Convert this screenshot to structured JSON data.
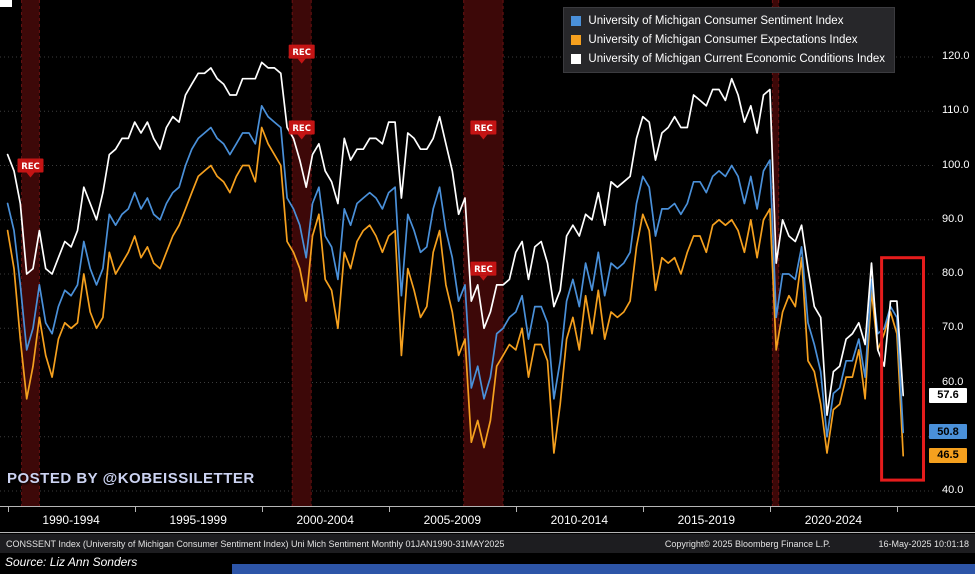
{
  "watermark": "POSTED BY @KOBEISSILETTER",
  "legend": {
    "items": [
      {
        "label": "University of Michigan Consumer Sentiment Index",
        "color": "#4a90d9"
      },
      {
        "label": "University of Michigan Consumer Expectations Index",
        "color": "#f5a01e"
      },
      {
        "label": "University of Michigan Current Economic Conditions Index",
        "color": "#ffffff"
      }
    ]
  },
  "value_badges": [
    {
      "value": "57.6",
      "color": "#ffffff"
    },
    {
      "value": "50.8",
      "color": "#4a90d9"
    },
    {
      "value": "46.5",
      "color": "#f5a01e"
    }
  ],
  "footer": {
    "left": "CONSSENT Index (University of Michigan Consumer Sentiment Index) Uni Mich Sentiment  Monthly 01JAN1990-31MAY2025",
    "copyright": "Copyright© 2025 Bloomberg Finance L.P.",
    "datetime": "16-May-2025 10:01:18"
  },
  "source": "Source: Liz Ann Sonders",
  "chart_data": {
    "type": "line",
    "period": "Monthly 01JAN1990-31MAY2025",
    "rec_label": "REC",
    "x_start": 1990.0,
    "x_step": 0.25,
    "x_domain": [
      1989.7,
      2026.5
    ],
    "y_domain": [
      40,
      120
    ],
    "y_ticks": [
      40,
      50,
      60,
      70,
      80,
      90,
      100,
      110,
      120
    ],
    "y_tick_labels": [
      "40.0",
      "50.0",
      "60.0",
      "70.0",
      "80.0",
      "90.0",
      "100.0",
      "110.0",
      "120.0"
    ],
    "x_tick_years": [
      1990,
      1995,
      2000,
      2005,
      2010,
      2015,
      2020,
      2025
    ],
    "x_labels": [
      {
        "label": "1990-1994",
        "center": 1992.5
      },
      {
        "label": "1995-1999",
        "center": 1997.5
      },
      {
        "label": "2000-2004",
        "center": 2002.5
      },
      {
        "label": "2005-2009",
        "center": 2007.5
      },
      {
        "label": "2010-2014",
        "center": 2012.5
      },
      {
        "label": "2015-2019",
        "center": 2017.5
      },
      {
        "label": "2020-2024",
        "center": 2022.5
      }
    ],
    "series": [
      {
        "name": "University of Michigan Consumer Sentiment Index",
        "color": "#4a90d9",
        "latest": 50.8,
        "values": [
          93,
          88,
          78,
          66,
          70,
          78,
          71,
          69,
          74,
          77,
          76,
          78,
          86,
          81,
          78,
          81,
          91,
          89,
          91,
          92,
          95,
          92,
          94,
          91,
          90,
          93,
          95,
          96,
          100,
          103,
          105,
          106,
          107,
          105,
          104,
          102,
          104,
          106,
          106,
          104,
          111,
          109,
          108,
          107,
          94,
          92,
          89,
          83,
          93,
          96,
          87,
          85,
          79,
          92,
          89,
          93,
          94,
          95,
          94,
          92,
          95,
          96,
          76,
          91,
          88,
          84,
          85,
          92,
          96,
          88,
          83,
          75,
          78,
          59,
          63,
          57,
          61,
          69,
          70,
          72,
          73,
          76,
          68,
          74,
          74,
          71,
          57,
          64,
          75,
          79,
          74,
          82,
          77,
          84,
          76,
          82,
          81,
          82,
          84,
          93,
          98,
          96,
          87,
          92,
          92,
          93,
          91,
          93,
          97,
          97,
          95,
          98,
          99,
          98,
          100,
          98,
          93,
          98,
          92,
          99,
          101,
          72,
          80,
          80,
          79,
          85,
          71,
          67,
          62,
          50,
          58,
          59,
          64,
          64,
          68,
          61,
          79,
          69,
          70,
          74,
          72,
          50.8
        ]
      },
      {
        "name": "University of Michigan Consumer Expectations Index",
        "color": "#f5a01e",
        "latest": 46.5,
        "values": [
          88,
          81,
          68,
          57,
          63,
          72,
          65,
          61,
          68,
          71,
          70,
          71,
          80,
          73,
          70,
          72,
          84,
          80,
          82,
          84,
          87,
          83,
          85,
          82,
          81,
          84,
          87,
          89,
          92,
          95,
          98,
          99,
          100,
          98,
          97,
          95,
          98,
          100,
          100,
          97,
          107,
          104,
          102,
          100,
          86,
          84,
          81,
          75,
          87,
          91,
          79,
          77,
          70,
          84,
          81,
          86,
          88,
          89,
          87,
          84,
          87,
          88,
          65,
          81,
          77,
          72,
          74,
          84,
          88,
          78,
          73,
          65,
          68,
          49,
          53,
          48,
          53,
          63,
          65,
          67,
          66,
          70,
          61,
          67,
          67,
          64,
          47,
          56,
          68,
          72,
          66,
          76,
          69,
          77,
          68,
          73,
          72,
          73,
          75,
          85,
          91,
          88,
          77,
          83,
          82,
          83,
          80,
          84,
          87,
          87,
          84,
          89,
          90,
          89,
          90,
          88,
          84,
          90,
          83,
          90,
          92,
          66,
          73,
          76,
          74,
          83,
          64,
          62,
          56,
          47,
          55,
          56,
          61,
          61,
          66,
          57,
          77,
          66,
          69,
          73,
          69,
          46.5
        ]
      },
      {
        "name": "University of Michigan Current Economic Conditions Index",
        "color": "#ffffff",
        "latest": 57.6,
        "values": [
          102,
          99,
          93,
          80,
          81,
          88,
          81,
          80,
          83,
          86,
          85,
          88,
          96,
          93,
          90,
          95,
          102,
          103,
          105,
          105,
          108,
          106,
          108,
          105,
          103,
          107,
          109,
          108,
          113,
          115,
          117,
          117,
          118,
          116,
          115,
          113,
          113,
          116,
          116,
          116,
          119,
          118,
          118,
          117,
          107,
          105,
          101,
          96,
          102,
          104,
          99,
          97,
          93,
          105,
          101,
          103,
          103,
          105,
          105,
          104,
          108,
          108,
          94,
          106,
          105,
          103,
          103,
          105,
          109,
          104,
          99,
          91,
          94,
          75,
          78,
          70,
          73,
          78,
          78,
          79,
          84,
          86,
          79,
          85,
          86,
          82,
          74,
          77,
          87,
          89,
          87,
          91,
          90,
          95,
          89,
          97,
          96,
          97,
          98,
          105,
          109,
          108,
          101,
          106,
          107,
          109,
          107,
          107,
          113,
          112,
          111,
          114,
          114,
          112,
          116,
          113,
          108,
          111,
          106,
          113,
          114,
          82,
          90,
          87,
          86,
          89,
          81,
          74,
          72,
          54,
          62,
          63,
          68,
          69,
          71,
          67,
          82,
          66,
          63,
          75,
          75,
          57.6
        ]
      }
    ],
    "recessions": [
      {
        "start": 1990.55,
        "end": 1991.25,
        "rec_tags": [
          100
        ]
      },
      {
        "start": 2001.2,
        "end": 2001.95,
        "rec_tags": [
          121,
          107
        ]
      },
      {
        "start": 2007.95,
        "end": 2009.5,
        "rec_tags": [
          107,
          81
        ]
      },
      {
        "start": 2020.1,
        "end": 2020.35,
        "rec_tags": []
      }
    ],
    "highlight_box": {
      "x_range": [
        2024.4,
        2026.05
      ],
      "y_range": [
        42,
        83
      ]
    }
  }
}
